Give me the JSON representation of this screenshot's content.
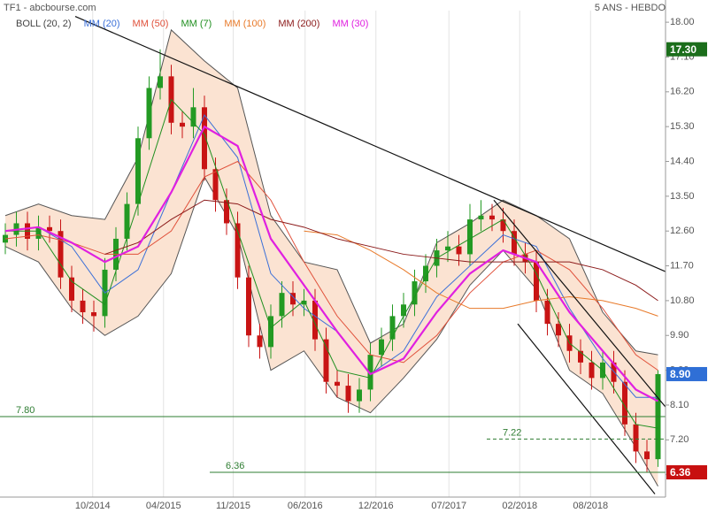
{
  "chart_data": {
    "type": "candlestick",
    "title": "TF1 - abcbourse.com",
    "subtitle": "5 ANS - HEBDO",
    "open": [
      12.3,
      12.5,
      12.8,
      12.4,
      12.7,
      12.6,
      11.4,
      10.8,
      10.5,
      10.4,
      11.6,
      12.4,
      13.3,
      15.0,
      16.3,
      16.6,
      15.4,
      15.3,
      15.8,
      14.2,
      13.4,
      12.8,
      11.4,
      9.9,
      9.6,
      10.4,
      11.0,
      10.7,
      10.8,
      9.8,
      8.7,
      8.6,
      8.2,
      8.5,
      9.4,
      9.8,
      10.4,
      10.7,
      11.3,
      11.7,
      12.1,
      12.2,
      12.0,
      12.9,
      13.0,
      12.9,
      12.6,
      12.0,
      11.8,
      10.8,
      10.2,
      9.9,
      9.5,
      9.2,
      8.8,
      9.2,
      8.7,
      7.6,
      6.9,
      6.7
    ],
    "high": [
      12.8,
      13.1,
      13.1,
      13.0,
      13.0,
      12.9,
      11.7,
      11.1,
      10.8,
      11.9,
      12.7,
      13.6,
      15.3,
      16.6,
      17.3,
      16.9,
      15.7,
      16.3,
      16.1,
      14.5,
      13.7,
      13.1,
      11.7,
      10.2,
      10.7,
      11.3,
      11.3,
      11.1,
      11.1,
      10.1,
      9.0,
      8.9,
      8.8,
      9.7,
      10.1,
      10.7,
      11.0,
      11.6,
      12.0,
      12.4,
      12.6,
      12.5,
      13.3,
      13.4,
      13.3,
      13.2,
      12.9,
      12.3,
      12.1,
      11.1,
      10.5,
      10.2,
      9.8,
      9.5,
      9.5,
      9.5,
      9.0,
      7.9,
      7.2,
      9.0
    ],
    "low": [
      12.0,
      12.2,
      12.1,
      12.1,
      12.3,
      11.1,
      10.5,
      10.2,
      10.0,
      10.1,
      11.3,
      12.1,
      13.0,
      14.7,
      16.0,
      15.1,
      15.0,
      15.0,
      13.9,
      13.1,
      12.5,
      11.1,
      9.6,
      9.3,
      9.3,
      10.1,
      10.4,
      10.4,
      9.5,
      8.4,
      8.3,
      7.9,
      7.9,
      8.2,
      9.1,
      9.5,
      10.1,
      10.4,
      11.0,
      11.4,
      11.8,
      11.7,
      11.7,
      12.6,
      12.6,
      12.3,
      11.7,
      11.5,
      10.5,
      9.9,
      9.6,
      9.2,
      8.9,
      8.5,
      8.5,
      8.4,
      7.3,
      6.6,
      6.36,
      6.5
    ],
    "close": [
      12.5,
      12.8,
      12.4,
      12.7,
      12.6,
      11.4,
      10.8,
      10.5,
      10.4,
      11.6,
      12.4,
      13.3,
      15.0,
      16.3,
      16.6,
      15.4,
      15.3,
      15.8,
      14.2,
      13.4,
      12.8,
      11.4,
      9.9,
      9.6,
      10.4,
      11.0,
      10.7,
      10.8,
      9.8,
      8.7,
      8.6,
      8.2,
      8.5,
      9.4,
      9.8,
      10.4,
      10.7,
      11.3,
      11.7,
      12.1,
      12.2,
      12.0,
      12.9,
      13.0,
      12.9,
      12.6,
      12.0,
      11.8,
      10.8,
      10.2,
      9.9,
      9.5,
      9.2,
      8.8,
      9.2,
      8.7,
      7.6,
      6.9,
      6.7,
      8.9
    ],
    "up_color": "#239a23",
    "down_color": "#c81414",
    "bollinger": {
      "name": "BOLL (20, 2)",
      "color": "#555555",
      "fill": "#fbe3d2",
      "x": [
        0,
        3,
        6,
        9,
        12,
        15,
        18,
        21,
        24,
        27,
        30,
        33,
        36,
        39,
        42,
        45,
        48,
        51,
        54,
        57,
        59
      ],
      "upper": [
        13.0,
        13.3,
        13.0,
        12.9,
        14.5,
        17.8,
        17.0,
        16.3,
        13.0,
        11.8,
        11.6,
        9.7,
        10.2,
        12.3,
        12.8,
        13.4,
        13.0,
        12.4,
        10.5,
        9.5,
        9.4
      ],
      "lower": [
        12.2,
        11.8,
        10.6,
        9.9,
        10.4,
        11.5,
        14.0,
        12.5,
        9.0,
        9.5,
        8.3,
        7.9,
        8.8,
        9.8,
        11.2,
        12.1,
        11.1,
        9.0,
        8.4,
        7.0,
        6.0
      ]
    },
    "series": [
      {
        "name": "MM (20)",
        "color": "#3a6fd8",
        "width": 1,
        "x": [
          0,
          3,
          6,
          9,
          12,
          15,
          18,
          21,
          24,
          27,
          30,
          33,
          36,
          39,
          42,
          45,
          48,
          51,
          54,
          57,
          59
        ],
        "values": [
          12.6,
          12.7,
          12.2,
          11.0,
          11.6,
          13.6,
          15.6,
          14.5,
          11.5,
          10.6,
          10.0,
          8.9,
          9.5,
          10.9,
          11.7,
          12.5,
          12.2,
          10.6,
          9.3,
          8.3,
          8.3
        ]
      },
      {
        "name": "MM (50)",
        "color": "#e0503a",
        "width": 1,
        "x": [
          0,
          3,
          6,
          9,
          12,
          15,
          18,
          21,
          24,
          27,
          30,
          33,
          36,
          39,
          42,
          45,
          48,
          51,
          54,
          57,
          59
        ],
        "values": [
          12.4,
          12.5,
          12.3,
          12.0,
          12.0,
          12.6,
          14.0,
          14.4,
          13.4,
          11.8,
          10.4,
          9.4,
          9.2,
          9.9,
          11.0,
          11.8,
          12.1,
          11.6,
          10.6,
          9.4,
          9.0
        ]
      },
      {
        "name": "MM (7)",
        "color": "#1f8f1f",
        "width": 1,
        "x": [
          0,
          3,
          6,
          9,
          12,
          15,
          18,
          21,
          24,
          27,
          30,
          33,
          36,
          39,
          42,
          45,
          48,
          51,
          54,
          57,
          59
        ],
        "values": [
          12.6,
          12.6,
          11.3,
          10.7,
          13.3,
          16.0,
          15.1,
          12.6,
          10.1,
          10.8,
          9.0,
          8.8,
          10.4,
          11.9,
          12.4,
          12.9,
          11.5,
          9.7,
          9.0,
          7.6,
          7.5
        ]
      },
      {
        "name": "MM (100)",
        "color": "#e87a2a",
        "width": 1,
        "x": [
          0,
          3,
          6,
          9,
          12,
          15,
          18,
          21,
          24,
          27,
          30,
          33,
          36,
          39,
          42,
          45,
          48,
          51,
          54,
          57,
          59
        ],
        "values": [
          null,
          null,
          null,
          null,
          null,
          null,
          null,
          null,
          null,
          12.6,
          12.5,
          12.1,
          11.6,
          11.0,
          10.6,
          10.6,
          10.8,
          10.9,
          10.8,
          10.6,
          10.4
        ]
      },
      {
        "name": "MM (200)",
        "color": "#8b1a1a",
        "width": 1,
        "x": [
          0,
          3,
          6,
          9,
          12,
          15,
          18,
          21,
          24,
          27,
          30,
          33,
          36,
          39,
          42,
          45,
          48,
          51,
          54,
          57,
          59
        ],
        "values": [
          null,
          null,
          null,
          12.0,
          12.3,
          12.9,
          13.4,
          13.3,
          12.9,
          12.7,
          12.4,
          12.2,
          12.0,
          11.9,
          11.8,
          11.8,
          11.8,
          11.8,
          11.6,
          11.2,
          10.8
        ]
      },
      {
        "name": "MM (30)",
        "color": "#e020e0",
        "width": 2.2,
        "x": [
          0,
          3,
          6,
          9,
          12,
          15,
          18,
          21,
          24,
          27,
          30,
          33,
          36,
          39,
          42,
          45,
          48,
          51,
          54,
          57,
          59
        ],
        "values": [
          12.6,
          12.7,
          12.3,
          11.8,
          12.2,
          13.6,
          15.3,
          14.8,
          12.4,
          11.2,
          10.0,
          8.9,
          9.3,
          10.5,
          11.5,
          12.1,
          11.8,
          10.5,
          9.5,
          8.5,
          8.2
        ]
      }
    ],
    "trendlines": [
      {
        "x": [
          6.32,
          59.68
        ],
        "values": [
          18.15,
          11.55
        ]
      },
      {
        "x": [
          44.16,
          59.68
        ],
        "values": [
          13.4,
          8.05
        ]
      },
      {
        "x": [
          46.32,
          58.72
        ],
        "values": [
          10.2,
          5.8
        ]
      }
    ],
    "hlines": [
      {
        "value": 7.8,
        "label": "7.80",
        "color": "#2e7d32",
        "dashed": false,
        "x_start": -0.48
      },
      {
        "value": 7.22,
        "label": "7.22",
        "color": "#2e7d32",
        "dashed": true,
        "x_start": 43.52
      },
      {
        "value": 6.36,
        "label": "6.36",
        "color": "#2e7d32",
        "dashed": false,
        "x_start": 18.48
      }
    ],
    "price_tags": [
      {
        "value": 17.3,
        "label": "17.30",
        "color": "#1b6e1b"
      },
      {
        "value": 8.9,
        "label": "8.90",
        "color": "#2f6fd6"
      },
      {
        "value": 6.36,
        "label": "6.36",
        "color": "#c81010"
      }
    ],
    "xlim": [
      -0.48,
      59.68
    ],
    "xticks": [
      {
        "value": 7.9,
        "label": "10/2014"
      },
      {
        "value": 14.3,
        "label": "04/2015"
      },
      {
        "value": 20.6,
        "label": "11/2015"
      },
      {
        "value": 27.1,
        "label": "06/2016"
      },
      {
        "value": 33.5,
        "label": "12/2016"
      },
      {
        "value": 40.1,
        "label": "07/2017"
      },
      {
        "value": 46.5,
        "label": "02/2018"
      },
      {
        "value": 52.9,
        "label": "08/2018"
      }
    ],
    "ylim": [
      5.72,
      18.3
    ],
    "yticks": [
      {
        "value": 18,
        "label": "18.00"
      },
      {
        "value": 17.1,
        "label": "17.10"
      },
      {
        "value": 16.2,
        "label": "16.20"
      },
      {
        "value": 15.3,
        "label": "15.30"
      },
      {
        "value": 14.4,
        "label": "14.40"
      },
      {
        "value": 13.5,
        "label": "13.50"
      },
      {
        "value": 12.6,
        "label": "12.60"
      },
      {
        "value": 11.7,
        "label": "11.70"
      },
      {
        "value": 10.8,
        "label": "10.80"
      },
      {
        "value": 9.9,
        "label": "9.90"
      },
      {
        "value": 9,
        "label": "9.00"
      },
      {
        "value": 8.1,
        "label": "8.10"
      },
      {
        "value": 7.2,
        "label": "7.20"
      },
      {
        "value": 6.3,
        "label": "6.30"
      }
    ],
    "grid": true
  }
}
